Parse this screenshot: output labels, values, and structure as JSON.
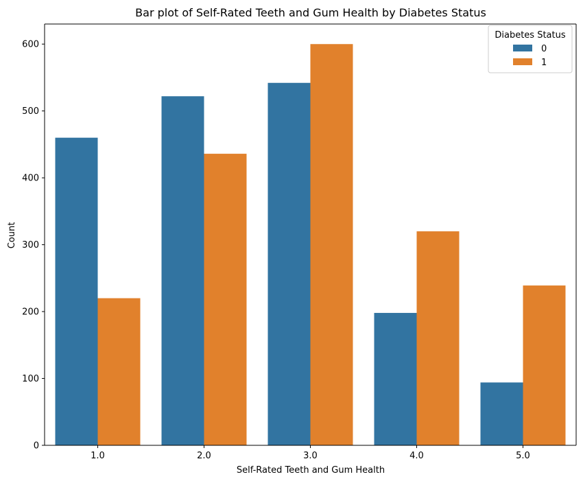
{
  "chart_data": {
    "type": "bar",
    "title": "Bar plot of Self-Rated Teeth and Gum Health by Diabetes Status",
    "xlabel": "Self-Rated Teeth and Gum Health",
    "ylabel": "Count",
    "categories": [
      "1.0",
      "2.0",
      "3.0",
      "4.0",
      "5.0"
    ],
    "series": [
      {
        "name": "0",
        "color": "#3274a1",
        "values": [
          460,
          522,
          542,
          198,
          94
        ]
      },
      {
        "name": "1",
        "color": "#e1812c",
        "values": [
          220,
          436,
          600,
          320,
          239
        ]
      }
    ],
    "ylim": [
      0,
      630
    ],
    "yticks": [
      0,
      100,
      200,
      300,
      400,
      500,
      600
    ],
    "grid": false,
    "legend": {
      "title": "Diabetes Status",
      "position": "top-right"
    }
  }
}
